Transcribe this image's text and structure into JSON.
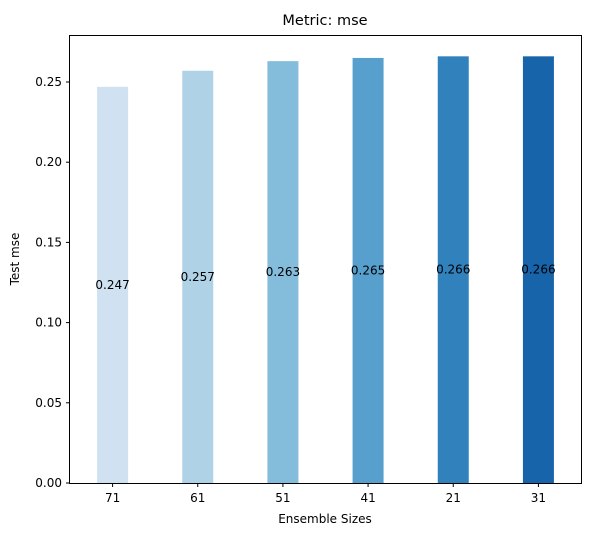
{
  "chart_data": {
    "type": "bar",
    "title": "Metric: mse",
    "xlabel": "Ensemble Sizes",
    "ylabel": "Test mse",
    "categories": [
      "71",
      "61",
      "51",
      "41",
      "21",
      "31"
    ],
    "values": [
      0.247,
      0.257,
      0.263,
      0.265,
      0.266,
      0.266
    ],
    "data_labels": [
      "0.247",
      "0.257",
      "0.263",
      "0.265",
      "0.266",
      "0.266"
    ],
    "ylim": [
      0,
      0.2793
    ],
    "yticks": [
      0.0,
      0.05,
      0.1,
      0.15,
      0.2,
      0.25
    ],
    "ytick_labels": [
      "0.00",
      "0.05",
      "0.10",
      "0.15",
      "0.20",
      "0.25"
    ],
    "colors": [
      "#d0e1f2",
      "#b0d2e7",
      "#84bcdb",
      "#57a0ce",
      "#3181bd",
      "#1764ab"
    ],
    "grid": false,
    "legend": "none"
  }
}
